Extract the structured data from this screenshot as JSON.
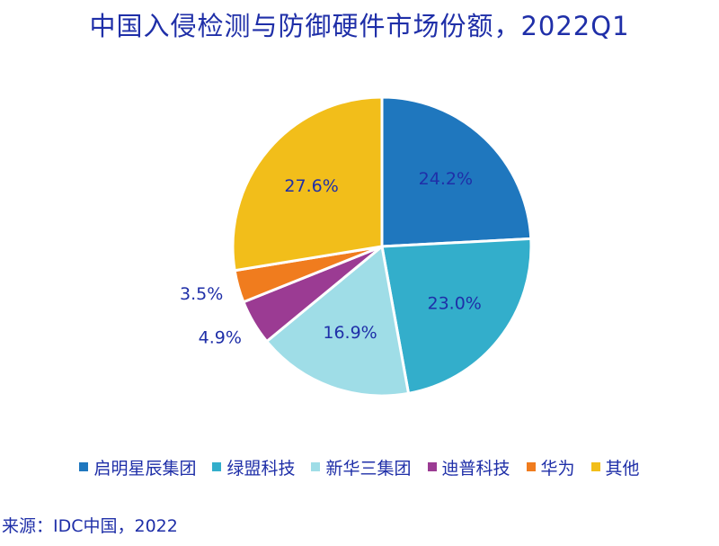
{
  "chart_data": {
    "type": "pie",
    "title": "中国入侵检测与防御硬件市场份额，2022Q1",
    "categories": [
      "启明星辰集团",
      "绿盟科技",
      "新华三集团",
      "迪普科技",
      "华为",
      "其他"
    ],
    "values": [
      24.2,
      23.0,
      16.9,
      4.9,
      3.5,
      27.6
    ],
    "labels": [
      "24.2%",
      "23.0%",
      "16.9%",
      "4.9%",
      "3.5%",
      "27.6%"
    ],
    "colors": [
      "#1f77be",
      "#33aecb",
      "#9fdde7",
      "#9b3b93",
      "#f07c1e",
      "#f2be1a"
    ],
    "legend_position": "bottom",
    "source": "来源：IDC中国，2022"
  }
}
